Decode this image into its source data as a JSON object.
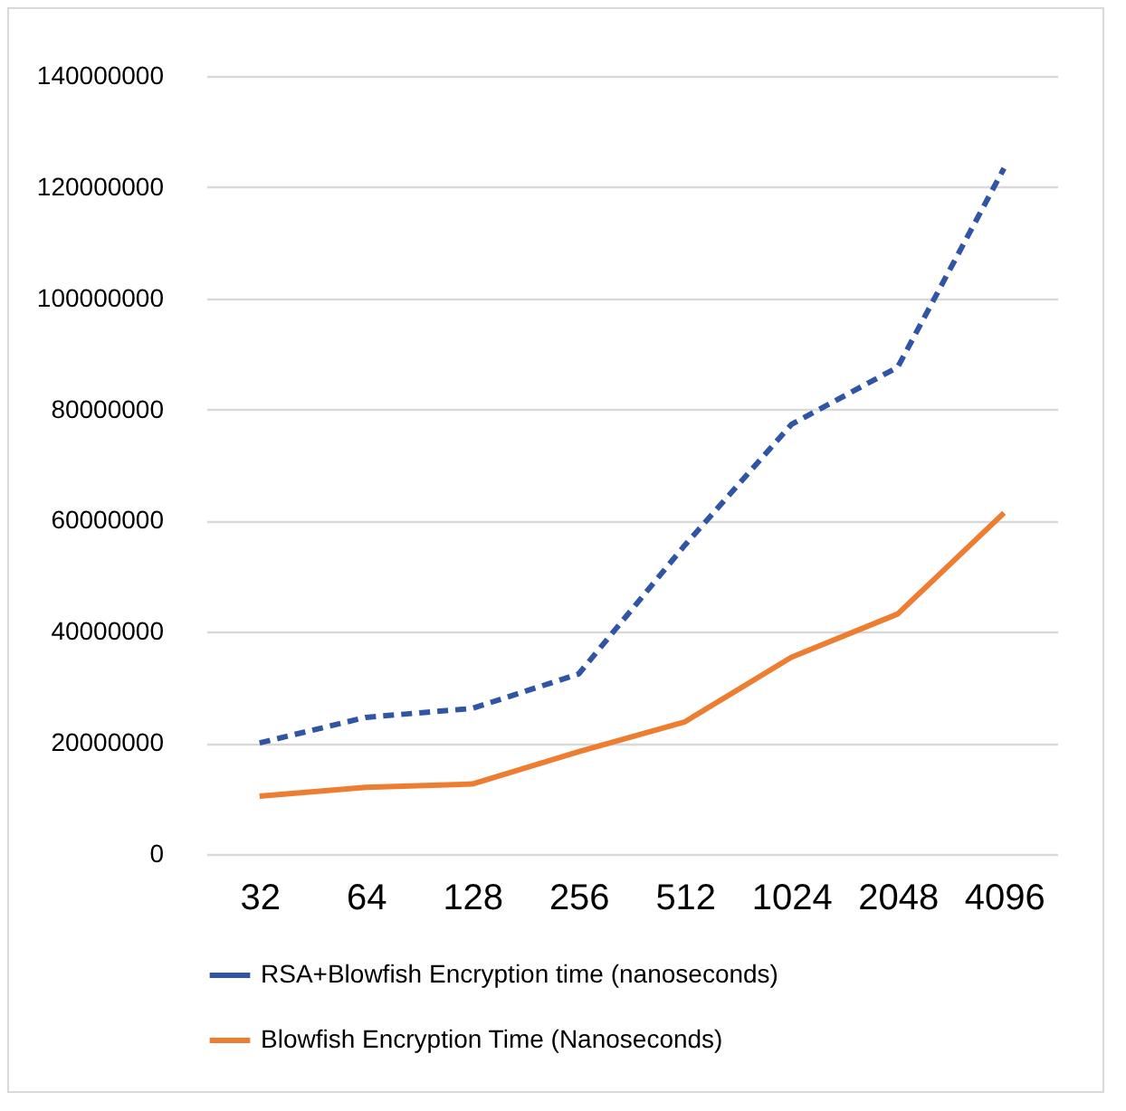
{
  "chart_data": {
    "type": "line",
    "categories": [
      "32",
      "64",
      "128",
      "256",
      "512",
      "1024",
      "2048",
      "4096"
    ],
    "series": [
      {
        "name": "RSA+Blowfish Encryption time (nanoseconds)",
        "color": "#2f55a4",
        "line_style": "dashed",
        "values": [
          20000000,
          24600000,
          26200000,
          32400000,
          55600000,
          77300000,
          87600000,
          123400000
        ]
      },
      {
        "name": "Blowfish Encryption Time (Nanoseconds)",
        "color": "#ed7d31",
        "line_style": "solid",
        "values": [
          10400000,
          12000000,
          12600000,
          18400000,
          23800000,
          35400000,
          43200000,
          61400000
        ]
      }
    ],
    "ylim": [
      0,
      140000000
    ],
    "yticks": [
      0,
      20000000,
      40000000,
      60000000,
      80000000,
      100000000,
      120000000,
      140000000
    ],
    "grid": "y",
    "legend": "bottom",
    "marker": "none"
  }
}
